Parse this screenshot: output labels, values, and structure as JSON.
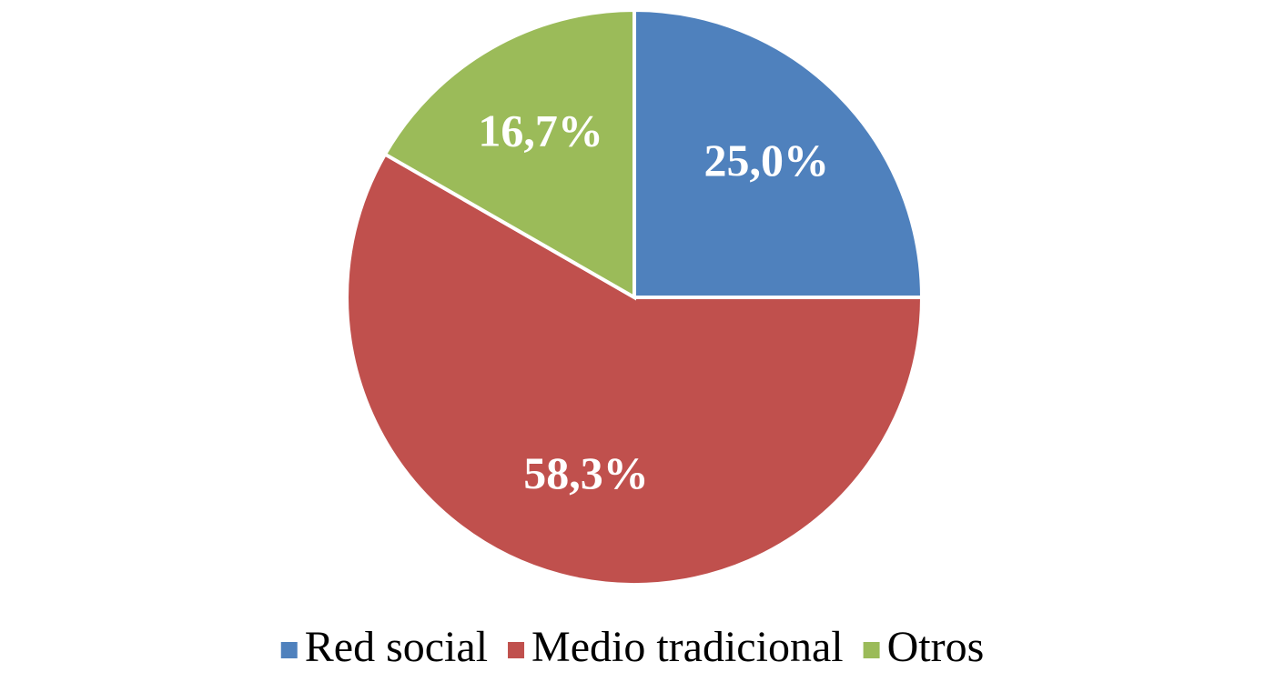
{
  "chart_data": {
    "type": "pie",
    "categories": [
      "Red social",
      "Medio tradicional",
      "Otros"
    ],
    "values": [
      25.0,
      58.3,
      16.7
    ],
    "value_labels": [
      "25,0%",
      "58,3%",
      "16,7%"
    ],
    "colors": [
      "#4f81bd",
      "#c0504d",
      "#9bbb59"
    ],
    "legend": "bottom"
  }
}
